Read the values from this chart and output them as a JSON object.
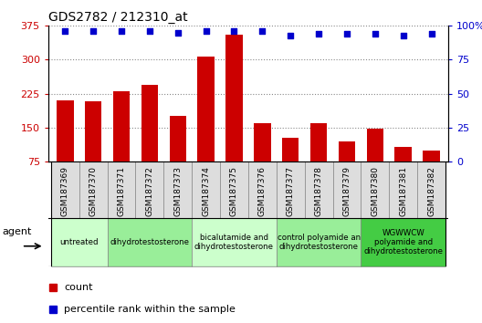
{
  "title": "GDS2782 / 212310_at",
  "samples": [
    "GSM187369",
    "GSM187370",
    "GSM187371",
    "GSM187372",
    "GSM187373",
    "GSM187374",
    "GSM187375",
    "GSM187376",
    "GSM187377",
    "GSM187378",
    "GSM187379",
    "GSM187380",
    "GSM187381",
    "GSM187382"
  ],
  "counts": [
    210,
    208,
    230,
    245,
    175,
    308,
    355,
    160,
    128,
    160,
    120,
    148,
    108,
    100
  ],
  "percentile": [
    96,
    96,
    96,
    96,
    95,
    96,
    96,
    96,
    93,
    94,
    94,
    94,
    93,
    94
  ],
  "ylim_left": [
    75,
    375
  ],
  "ylim_right": [
    0,
    100
  ],
  "yticks_left": [
    75,
    150,
    225,
    300,
    375
  ],
  "ytick_labels_left": [
    "75",
    "150",
    "225",
    "300",
    "375"
  ],
  "yticks_right": [
    0,
    25,
    50,
    75,
    100
  ],
  "ytick_labels_right": [
    "0",
    "25",
    "50",
    "75",
    "100%"
  ],
  "bar_color": "#cc0000",
  "dot_color": "#0000cc",
  "grid_color": "#888888",
  "agent_groups": [
    {
      "label": "untreated",
      "indices": [
        0,
        1
      ],
      "color": "#ccffcc"
    },
    {
      "label": "dihydrotestosterone",
      "indices": [
        2,
        3,
        4
      ],
      "color": "#99ee99"
    },
    {
      "label": "bicalutamide and\ndihydrotestosterone",
      "indices": [
        5,
        6,
        7
      ],
      "color": "#ccffcc"
    },
    {
      "label": "control polyamide an\ndihydrotestosterone",
      "indices": [
        8,
        9,
        10
      ],
      "color": "#99ee99"
    },
    {
      "label": "WGWWCW\npolyamide and\ndihydrotestosterone",
      "indices": [
        11,
        12,
        13
      ],
      "color": "#44cc44"
    }
  ],
  "legend_items": [
    {
      "label": "count",
      "color": "#cc0000"
    },
    {
      "label": "percentile rank within the sample",
      "color": "#0000cc"
    }
  ],
  "sample_cell_color": "#dddddd",
  "sample_cell_edge": "#888888"
}
